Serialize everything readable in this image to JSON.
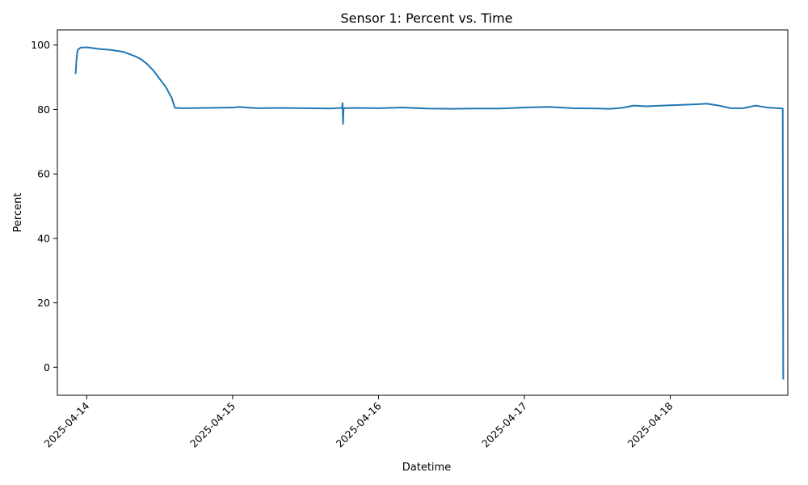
{
  "chart_data": {
    "type": "line",
    "title": "Sensor 1: Percent vs. Time",
    "xlabel": "Datetime",
    "ylabel": "Percent",
    "xlim": [
      "2025-04-13 19:10",
      "2025-04-18 19:20"
    ],
    "ylim": [
      -8.7,
      104.7
    ],
    "x_ticks": [
      "2025-04-14",
      "2025-04-15",
      "2025-04-16",
      "2025-04-17",
      "2025-04-18"
    ],
    "y_ticks": [
      0,
      20,
      40,
      60,
      80,
      100
    ],
    "grid": false,
    "legend": "none",
    "color": "#1f77b4",
    "series": [
      {
        "x": [
          "2025-04-13 22:10",
          "2025-04-13 22:20",
          "2025-04-13 22:30",
          "2025-04-13 23:00",
          "2025-04-14 00:00",
          "2025-04-14 02:00",
          "2025-04-14 04:00",
          "2025-04-14 06:00",
          "2025-04-14 08:00",
          "2025-04-14 09:00",
          "2025-04-14 10:00",
          "2025-04-14 11:00",
          "2025-04-14 12:00",
          "2025-04-14 13:00",
          "2025-04-14 14:00",
          "2025-04-14 14:30",
          "2025-04-14 16:00",
          "2025-04-14 20:00",
          "2025-04-15 00:00",
          "2025-04-15 01:00",
          "2025-04-15 04:00",
          "2025-04-15 08:00",
          "2025-04-15 12:00",
          "2025-04-15 16:00",
          "2025-04-15 18:00",
          "2025-04-15 18:05",
          "2025-04-15 18:10",
          "2025-04-15 18:15",
          "2025-04-15 20:00",
          "2025-04-16 00:00",
          "2025-04-16 04:00",
          "2025-04-16 08:00",
          "2025-04-16 12:00",
          "2025-04-16 16:00",
          "2025-04-16 20:00",
          "2025-04-17 00:00",
          "2025-04-17 04:00",
          "2025-04-17 08:00",
          "2025-04-17 12:00",
          "2025-04-17 14:00",
          "2025-04-17 16:00",
          "2025-04-17 18:00",
          "2025-04-17 20:00",
          "2025-04-18 00:00",
          "2025-04-18 04:00",
          "2025-04-18 06:00",
          "2025-04-18 08:00",
          "2025-04-18 10:00",
          "2025-04-18 12:00",
          "2025-04-18 14:00",
          "2025-04-18 16:00",
          "2025-04-18 18:30",
          "2025-04-18 18:35"
        ],
        "y": [
          91,
          96,
          98.5,
          99.2,
          99.3,
          98.8,
          98.5,
          97.9,
          96.5,
          95.5,
          94,
          92,
          89.5,
          87,
          83.5,
          80.5,
          80.4,
          80.5,
          80.6,
          80.8,
          80.4,
          80.5,
          80.4,
          80.3,
          80.5,
          82,
          75.5,
          80.4,
          80.5,
          80.4,
          80.6,
          80.3,
          80.2,
          80.3,
          80.3,
          80.6,
          80.8,
          80.4,
          80.3,
          80.2,
          80.5,
          81.2,
          81,
          81.3,
          81.6,
          81.8,
          81.2,
          80.4,
          80.4,
          81.2,
          80.6,
          80.3,
          -3.8
        ]
      }
    ]
  }
}
